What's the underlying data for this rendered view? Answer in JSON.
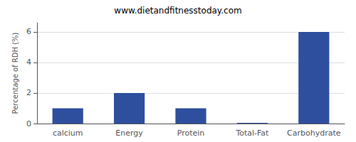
{
  "chart_data": {
    "type": "bar",
    "subtitle": "www.dietandfitnesstoday.com",
    "categories": [
      "calcium",
      "Energy",
      "Protein",
      "Total-Fat",
      "Carbohydrate"
    ],
    "values": [
      1.0,
      2.0,
      1.0,
      0.05,
      6.0
    ],
    "color": "#2e4f9e",
    "ylabel": "Percentage of RDH (%)",
    "ylim": [
      0,
      6.6
    ],
    "yticks": [
      0,
      2,
      4,
      6
    ],
    "grid": true
  }
}
